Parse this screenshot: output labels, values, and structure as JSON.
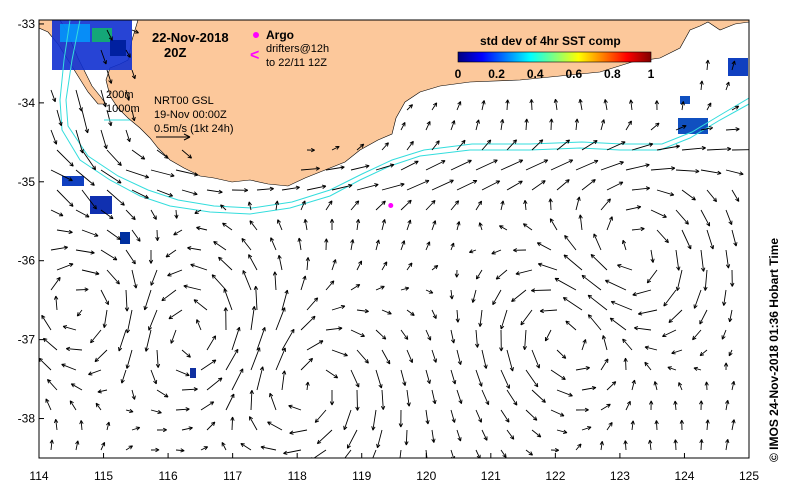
{
  "map": {
    "date_label": "22-Nov-2018",
    "time_label": "20Z",
    "x_tick_labels": [
      "114",
      "115",
      "116",
      "117",
      "118",
      "119",
      "120",
      "121",
      "122",
      "123",
      "124",
      "125"
    ],
    "y_tick_labels": [
      "-33",
      "-34",
      "-35",
      "-36",
      "-37",
      "-38"
    ],
    "lon_range": [
      114,
      125
    ],
    "lat_range": [
      -38.5,
      -32.95
    ],
    "gridlines": false
  },
  "legend": {
    "argo_label": "Argo",
    "argo_color": "#ff00ff",
    "drifters_label": "drifters@12h",
    "drifters_sub_label": "to 22/11 12Z",
    "drifter_glyph": "<",
    "isobath_200": "200m",
    "isobath_1000": "1000m",
    "isobath_color": "#33dddd",
    "product_label": "NRT00 GSL",
    "product_date": "19-Nov 00:00Z",
    "velocity_scale_label": "0.5m/s (1kt 24h)"
  },
  "colorbar": {
    "title": "std dev of 4hr SST comp",
    "tick_labels": [
      "0",
      "0.2",
      "0.4",
      "0.6",
      "0.8",
      "1"
    ],
    "range": [
      0,
      1
    ],
    "colormap": "jet"
  },
  "side_label": "© IMOS 24-Nov-2018 01:36 Hobart Time",
  "colors": {
    "land": "#fcc89b",
    "ocean": "#ffffff",
    "arrow": "#000000"
  },
  "argo_float": {
    "lon": 119.45,
    "lat": -35.3
  }
}
